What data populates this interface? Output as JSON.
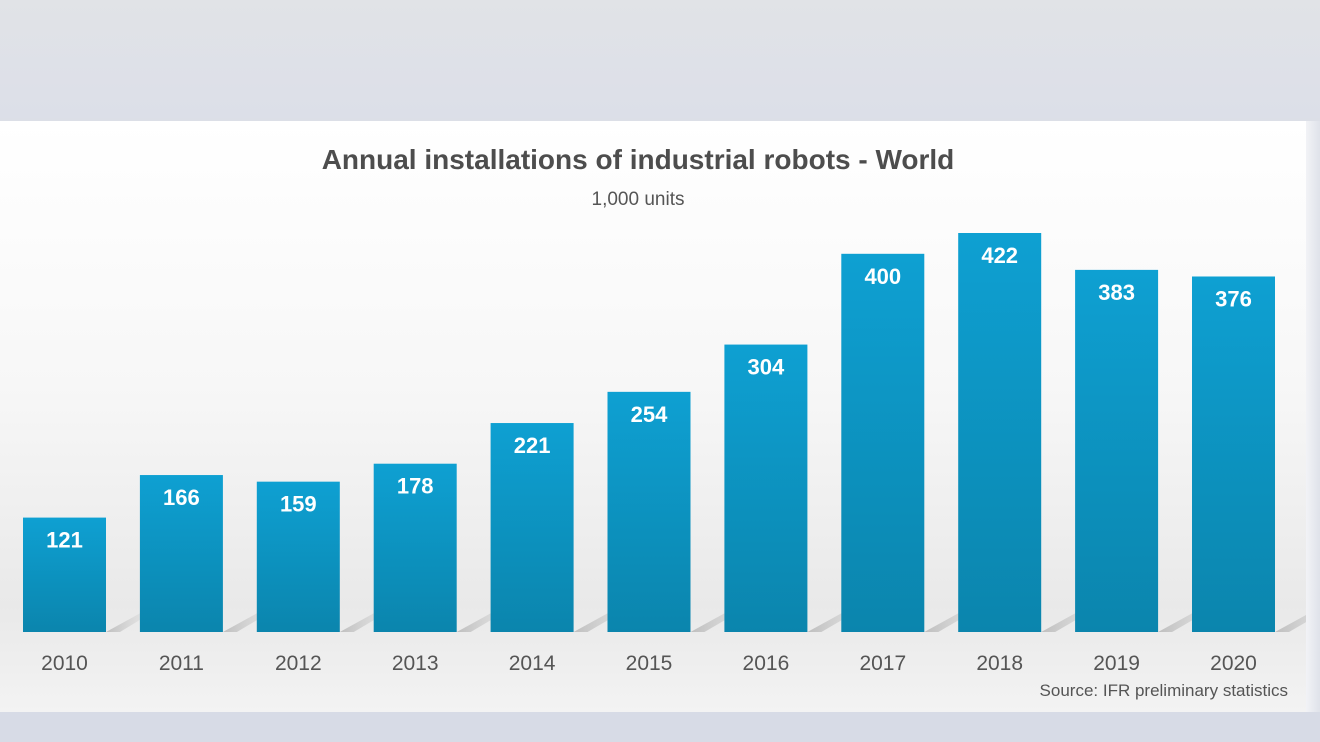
{
  "chart_data": {
    "type": "bar",
    "title": "Annual installations of industrial robots - World",
    "subtitle": "1,000 units",
    "source": "Source: IFR preliminary statistics",
    "categories": [
      "2010",
      "2011",
      "2012",
      "2013",
      "2014",
      "2015",
      "2016",
      "2017",
      "2018",
      "2019",
      "2020"
    ],
    "values": [
      121,
      166,
      159,
      178,
      221,
      254,
      304,
      400,
      422,
      383,
      376
    ],
    "data_labels": [
      "121",
      "166",
      "159",
      "178",
      "221",
      "254",
      "304",
      "400",
      "422",
      "383",
      "376"
    ],
    "xlabel": "",
    "ylabel": "",
    "ylim": [
      0,
      422
    ],
    "grid": false,
    "legend": "none"
  },
  "colors": {
    "bar_top": "#0ea0d2",
    "bar_bottom": "#0b85ad",
    "bar_label": "#ffffff",
    "tick_label": "#555555"
  }
}
